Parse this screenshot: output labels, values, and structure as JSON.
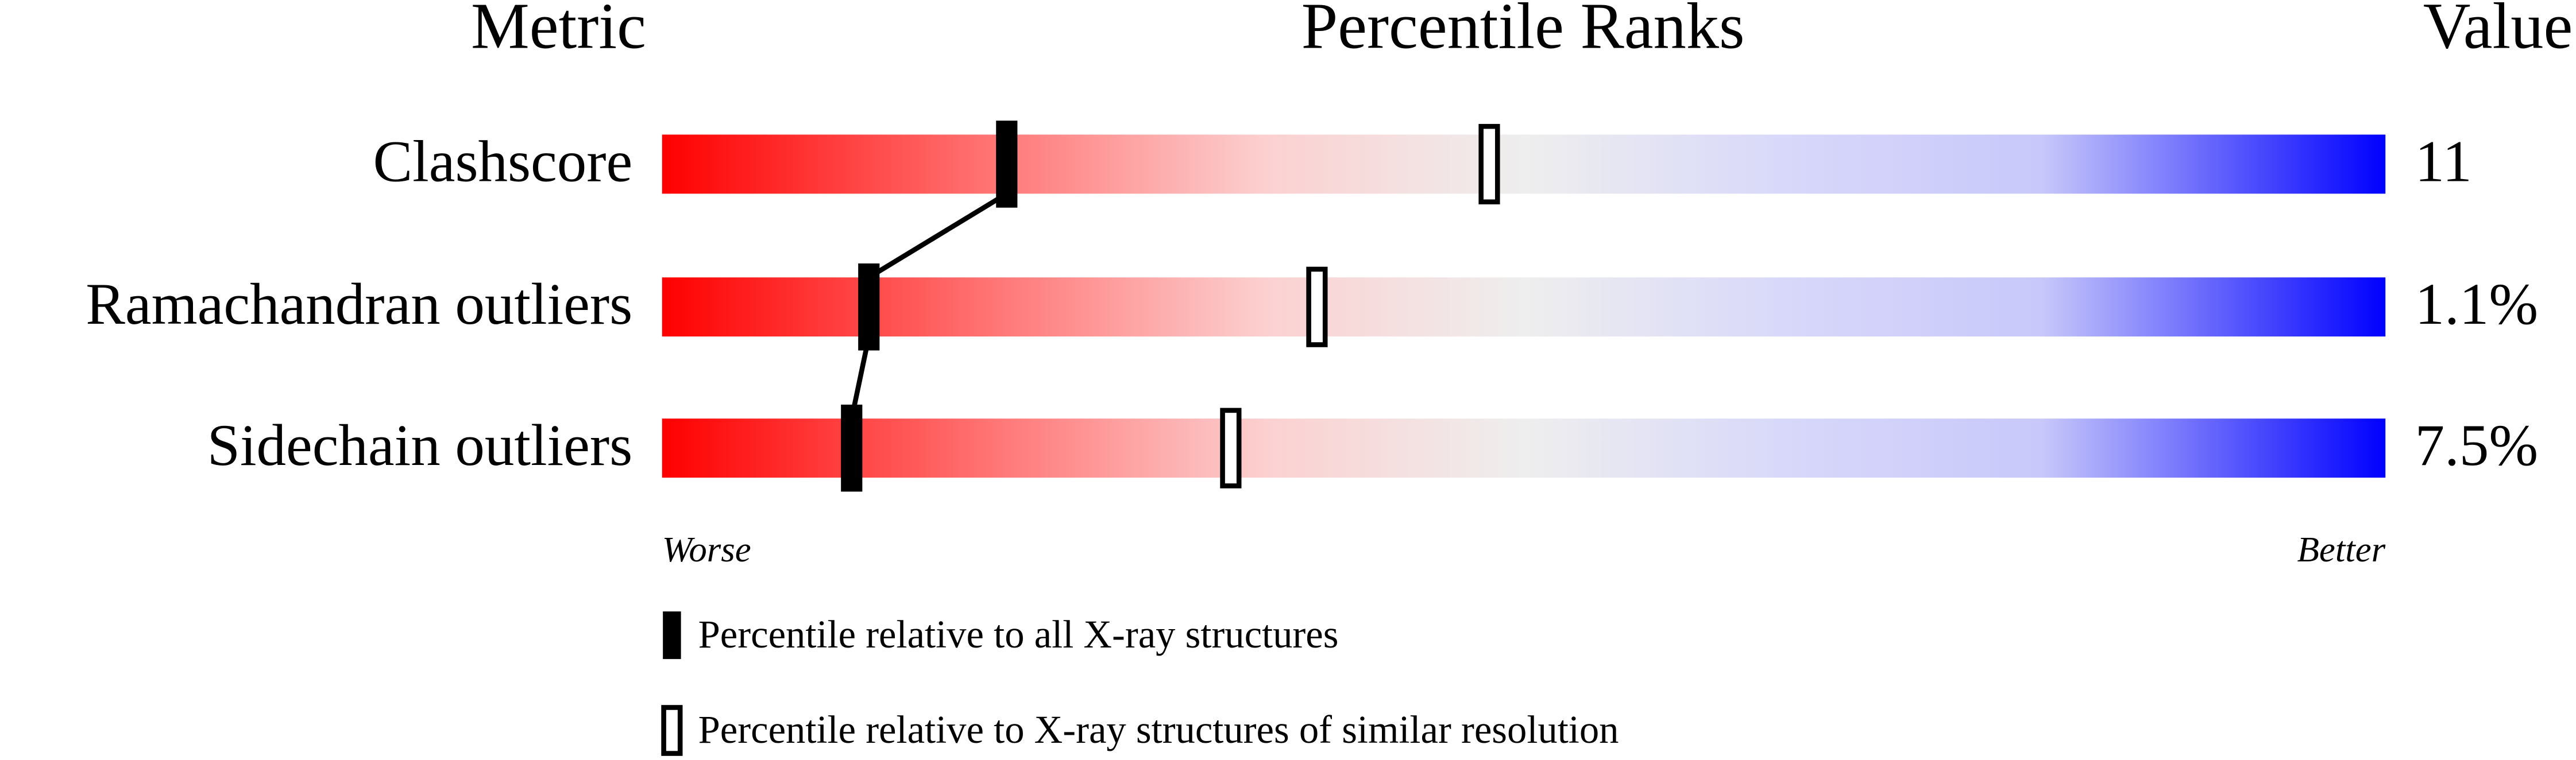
{
  "chart_data": {
    "type": "slider",
    "title": "Percentile Ranks",
    "metric_header": "Metric",
    "value_header": "Value",
    "categories": [
      "Clashscore",
      "Ramachandran outliers",
      "Sidechain outliers"
    ],
    "values": [
      11,
      1.1,
      7.5
    ],
    "value_labels": [
      "11",
      "1.1%",
      "7.5%"
    ],
    "xlim": [
      0,
      100
    ],
    "x_low_label": "Worse",
    "x_high_label": "Better",
    "series": [
      {
        "name": "Percentile relative to all X-ray structures",
        "color": "#000000",
        "values": [
          20,
          12,
          11
        ]
      },
      {
        "name": "Percentile relative to X-ray structures of similar resolution",
        "color": "#ffffff",
        "values": [
          48,
          38,
          33
        ]
      }
    ]
  }
}
